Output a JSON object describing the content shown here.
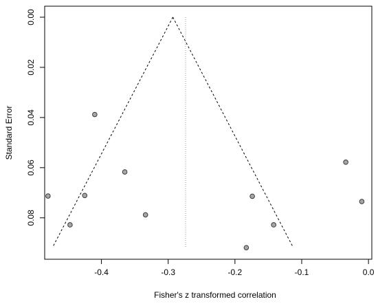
{
  "chart_data": {
    "type": "scatter",
    "subtype": "funnel-plot",
    "title": "",
    "xlabel": "Fisher's z transformed correlation",
    "ylabel": "Standard Error",
    "xlim": [
      -0.485,
      0.005
    ],
    "ylim": [
      0.0,
      0.0935
    ],
    "y_axis_reversed": true,
    "x_ticks": [
      -0.4,
      -0.3,
      -0.2,
      -0.1,
      0.0
    ],
    "x_tick_labels": [
      "-0.4",
      "-0.3",
      "-0.2",
      "-0.1",
      "0.0"
    ],
    "y_ticks": [
      0.0,
      0.02,
      0.04,
      0.06,
      0.08
    ],
    "y_tick_labels": [
      "0.00",
      "0.02",
      "0.04",
      "0.06",
      "0.08"
    ],
    "grid": false,
    "legend": "none",
    "points": [
      {
        "x": -0.41,
        "y": 0.0388
      },
      {
        "x": -0.365,
        "y": 0.0617
      },
      {
        "x": -0.48,
        "y": 0.0713
      },
      {
        "x": -0.425,
        "y": 0.0711
      },
      {
        "x": -0.447,
        "y": 0.0828
      },
      {
        "x": -0.334,
        "y": 0.0788
      },
      {
        "x": -0.174,
        "y": 0.0714
      },
      {
        "x": -0.142,
        "y": 0.0828
      },
      {
        "x": -0.183,
        "y": 0.0919
      },
      {
        "x": -0.034,
        "y": 0.0578
      },
      {
        "x": -0.01,
        "y": 0.0735
      }
    ],
    "funnel": {
      "apex": {
        "x": -0.293,
        "y": 0.0
      },
      "left_base": {
        "x": -0.473,
        "y": 0.0917
      },
      "right_base": {
        "x": -0.113,
        "y": 0.0917
      }
    },
    "reference_line_x": -0.274,
    "colors": {
      "point_fill": "#a6a6a6",
      "point_stroke": "#3a3a3a",
      "lines": "#000000",
      "reference_line": "#9a9a9a"
    }
  }
}
